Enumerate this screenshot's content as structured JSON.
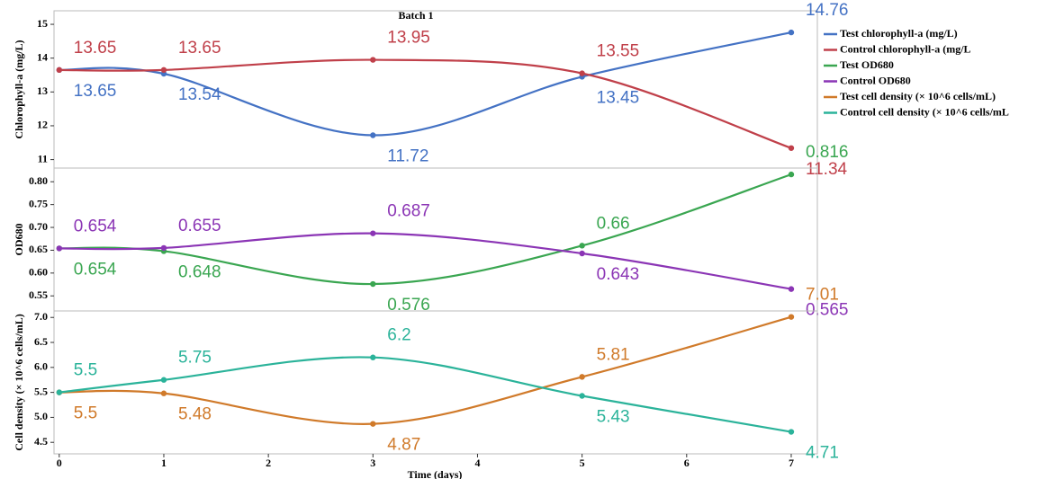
{
  "chart_data": [
    {
      "type": "line",
      "title": "Batch 1",
      "ylabel": "Chlorophyll-a (mg/L)",
      "x": [
        0,
        1,
        3,
        5,
        7
      ],
      "xlim": [
        -0.05,
        7.25
      ],
      "ylim": [
        10.75,
        15.4
      ],
      "yticks": [
        11,
        12,
        13,
        14,
        15
      ],
      "series": [
        {
          "name": "Test chlorophyll-a (mg/L)",
          "color": "#4472c4",
          "values": [
            13.65,
            13.54,
            11.72,
            13.45,
            14.76
          ]
        },
        {
          "name": "Control chlorophyll-a (mg/L",
          "color": "#c0404a",
          "values": [
            13.65,
            13.65,
            13.95,
            13.55,
            11.34
          ]
        }
      ]
    },
    {
      "type": "line",
      "ylabel": "OD680",
      "x": [
        0,
        1,
        3,
        5,
        7
      ],
      "xlim": [
        -0.05,
        7.25
      ],
      "ylim": [
        0.517,
        0.83
      ],
      "yticks": [
        0.55,
        {
          "value": 0.6,
          "label": "0.60"
        },
        0.65,
        {
          "value": 0.7,
          "label": "0.70"
        },
        0.75,
        {
          "value": 0.8,
          "label": "0.80"
        }
      ],
      "series": [
        {
          "name": "Test OD680",
          "color": "#3aa651",
          "values": [
            0.654,
            0.648,
            0.576,
            0.66,
            0.816
          ]
        },
        {
          "name": "Control OD680",
          "color": "#8b35b5",
          "values": [
            0.654,
            0.655,
            0.687,
            0.643,
            0.565
          ]
        }
      ]
    },
    {
      "type": "line",
      "ylabel": "Cell density (× 10^6 cells/mL)",
      "xlabel": "Time (days)",
      "x": [
        0,
        1,
        3,
        5,
        7
      ],
      "xlim": [
        -0.05,
        7.25
      ],
      "xticks": [
        0,
        1,
        2,
        3,
        4,
        5,
        6,
        7
      ],
      "ylim": [
        4.27,
        7.13
      ],
      "yticks": [
        4.5,
        {
          "value": 5,
          "label": "5.0"
        },
        5.5,
        {
          "value": 6,
          "label": "6.0"
        },
        6.5,
        {
          "value": 7,
          "label": "7.0"
        }
      ],
      "series": [
        {
          "name": "Test cell density (× 10^6 cells/mL)",
          "color": "#d07a2a",
          "values": [
            5.5,
            5.48,
            4.87,
            5.81,
            7.01
          ]
        },
        {
          "name": "Control cell density (× 10^6 cells/mL",
          "color": "#2bb39a",
          "values": [
            5.5,
            5.75,
            6.2,
            5.43,
            4.71
          ]
        }
      ]
    }
  ]
}
